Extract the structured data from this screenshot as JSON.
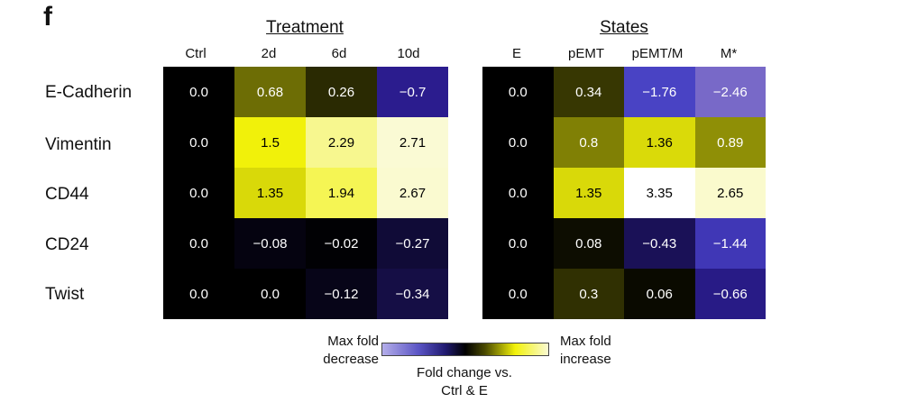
{
  "panel_letter": "f",
  "row_labels": [
    "E-Cadherin",
    "Vimentin",
    "CD44",
    "CD24",
    "Twist"
  ],
  "legend": {
    "left": [
      "Max fold",
      "decrease"
    ],
    "right": [
      "Max fold",
      "increase"
    ],
    "caption": [
      "Fold change vs.",
      "Ctrl & E"
    ]
  },
  "colors": {
    "low": "#5a54c4",
    "mid": "#000000",
    "high": "#f2f20a",
    "max": "#fafad2"
  },
  "chart_data": [
    {
      "type": "heatmap",
      "title": "Treatment",
      "columns": [
        "Ctrl",
        "2d",
        "6d",
        "10d"
      ],
      "rows": [
        "E-Cadherin",
        "Vimentin",
        "CD44",
        "CD24",
        "Twist"
      ],
      "values": [
        [
          0.0,
          0.68,
          0.26,
          -0.7
        ],
        [
          0.0,
          1.5,
          2.29,
          2.71
        ],
        [
          0.0,
          1.35,
          1.94,
          2.67
        ],
        [
          0.0,
          -0.08,
          -0.02,
          -0.27
        ],
        [
          0.0,
          0.0,
          -0.12,
          -0.34
        ]
      ],
      "labels": [
        [
          "0.0",
          "0.68",
          "0.26",
          "−0.7"
        ],
        [
          "0.0",
          "1.5",
          "2.29",
          "2.71"
        ],
        [
          "0.0",
          "1.35",
          "1.94",
          "2.67"
        ],
        [
          "0.0",
          "−0.08",
          "−0.02",
          "−0.27"
        ],
        [
          "0.0",
          "0.0",
          "−0.12",
          "−0.34"
        ]
      ]
    },
    {
      "type": "heatmap",
      "title": "States",
      "columns": [
        "E",
        "pEMT",
        "pEMT/M",
        "M*"
      ],
      "rows": [
        "E-Cadherin",
        "Vimentin",
        "CD44",
        "CD24",
        "Twist"
      ],
      "values": [
        [
          0.0,
          0.34,
          -1.76,
          -2.46
        ],
        [
          0.0,
          0.8,
          1.36,
          0.89
        ],
        [
          0.0,
          1.35,
          3.35,
          2.65
        ],
        [
          0.0,
          0.08,
          -0.43,
          -1.44
        ],
        [
          0.0,
          0.3,
          0.06,
          -0.66
        ]
      ],
      "labels": [
        [
          "0.0",
          "0.34",
          "−1.76",
          "−2.46"
        ],
        [
          "0.0",
          "0.8",
          "1.36",
          "0.89"
        ],
        [
          "0.0",
          "1.35",
          "3.35",
          "2.65"
        ],
        [
          "0.0",
          "0.08",
          "−0.43",
          "−1.44"
        ],
        [
          "0.0",
          "0.3",
          "0.06",
          "−0.66"
        ]
      ]
    }
  ]
}
